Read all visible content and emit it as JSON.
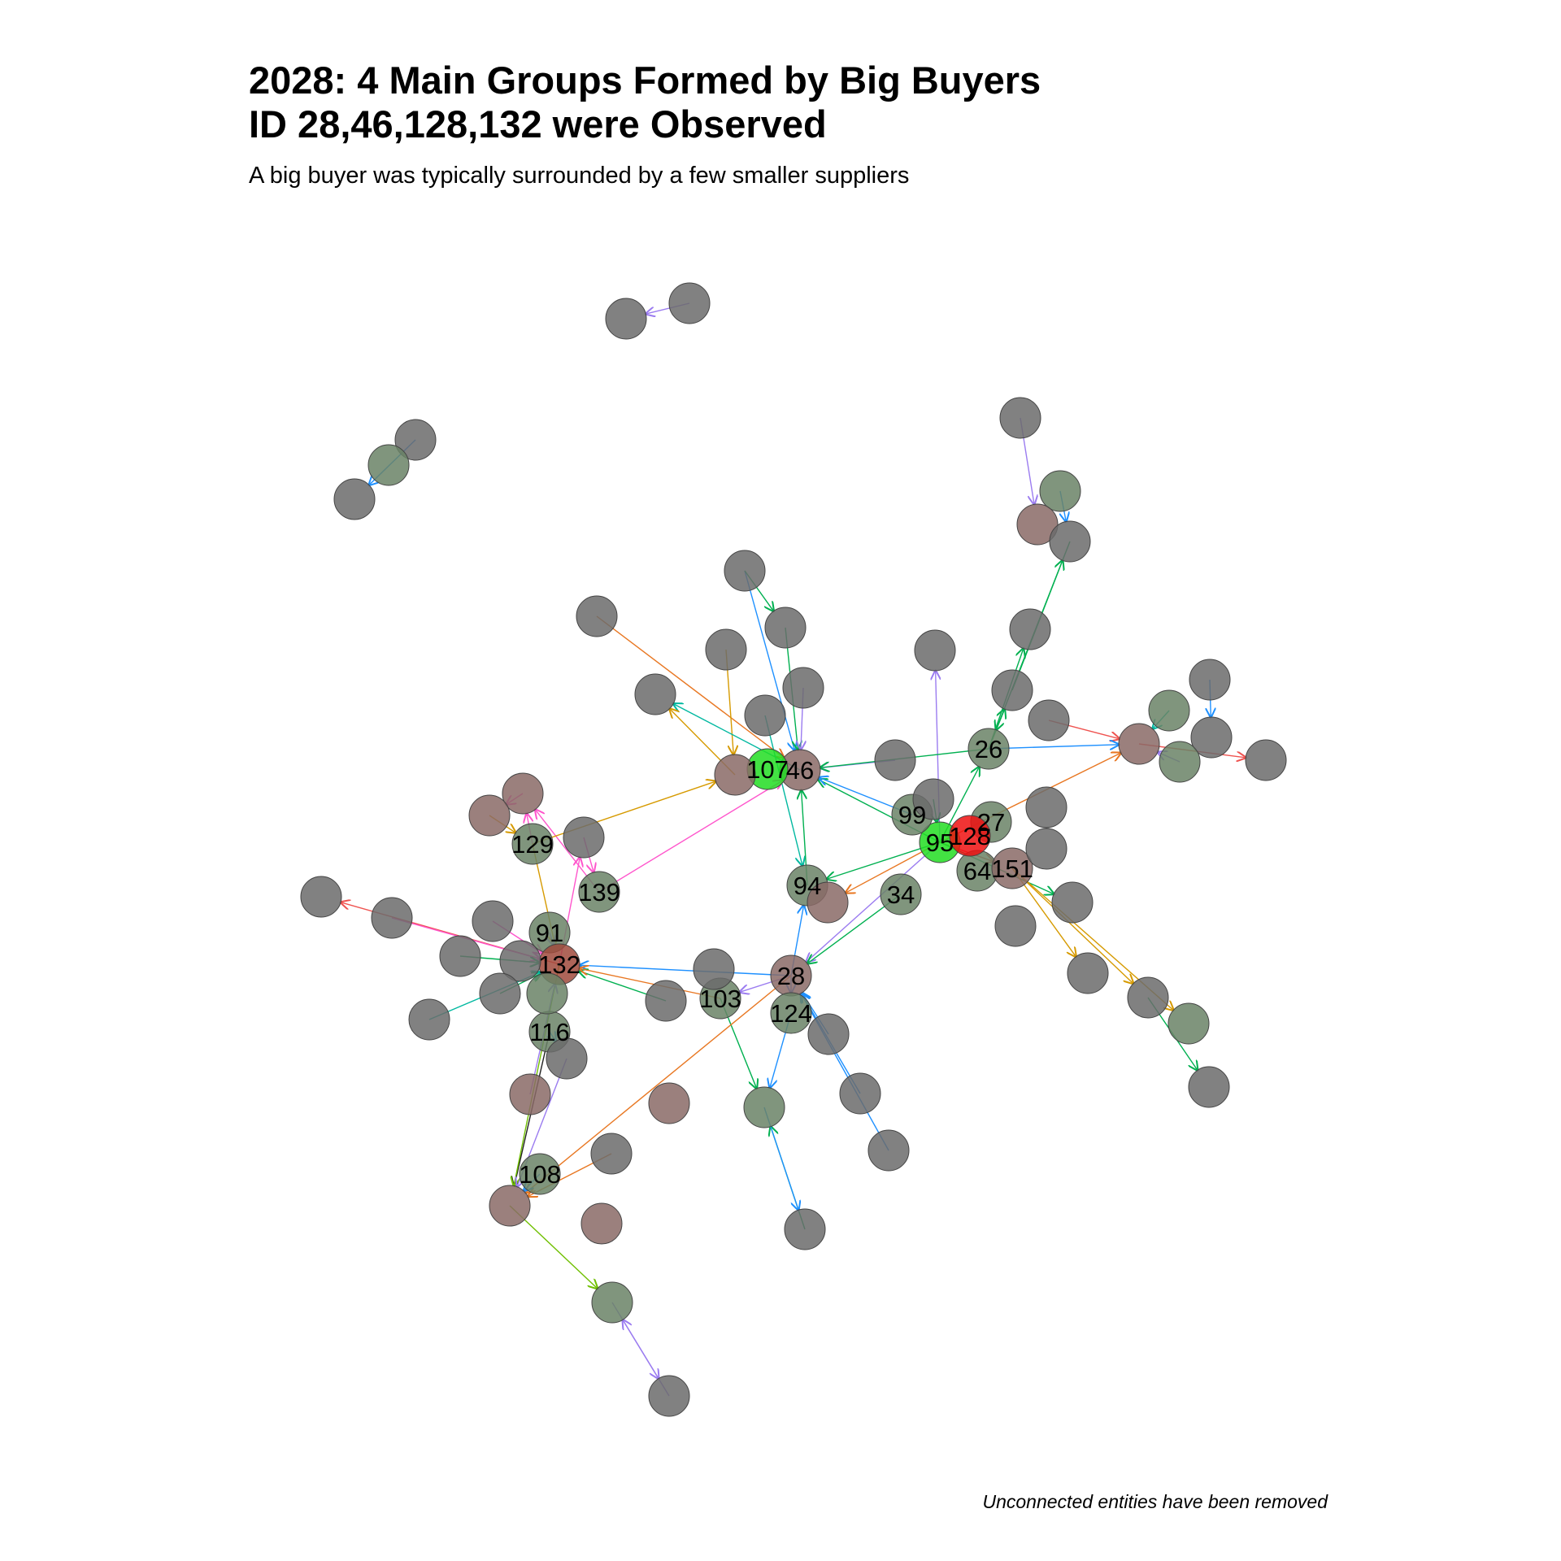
{
  "title": "2028: 4 Main Groups Formed by Big Buyers ID 28,46,128,132 were Observed",
  "subtitle": "A big buyer was typically surrounded by a few smaller suppliers",
  "caption": "Unconnected entities have been removed",
  "colors": {
    "node_default": "#6b6b6b",
    "node_supplier": "#6a8266",
    "node_buyer": "#8a6a66",
    "node_buyer_strong": "#a04a3c",
    "node_highlight_green": "#22dd22",
    "node_highlight_red": "#ee1111",
    "edge_palette": [
      "#00b050",
      "#1e90ff",
      "#d69a00",
      "#e87722",
      "#9b7cf0",
      "#ff55cc",
      "#ef5350",
      "#2eb8d6",
      "#6fbf00",
      "#00b8a0",
      "#222222"
    ]
  },
  "network": {
    "node_labels": [
      "26",
      "27",
      "28",
      "34",
      "46",
      "64",
      "91",
      "94",
      "95",
      "99",
      "103",
      "107",
      "108",
      "116",
      "124",
      "128",
      "129",
      "132",
      "139",
      "151"
    ]
  }
}
